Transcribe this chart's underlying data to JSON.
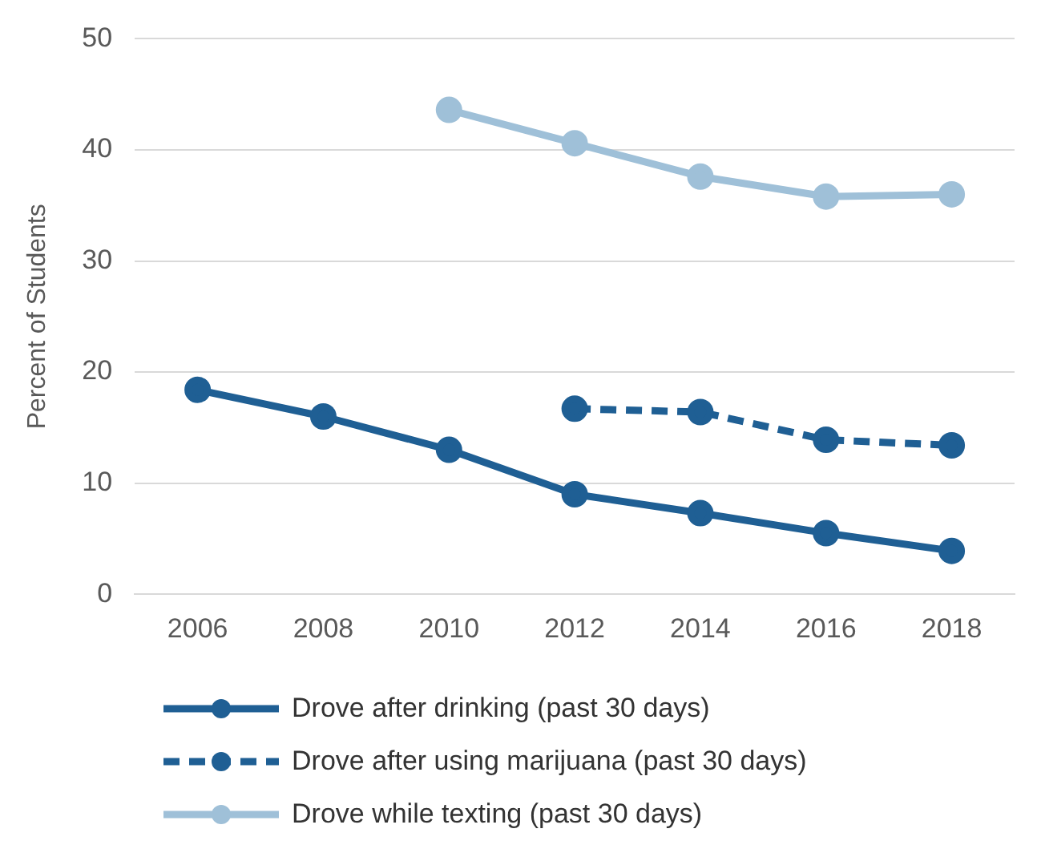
{
  "chart_data": {
    "type": "line",
    "ylabel": "Percent of Students",
    "categories": [
      "2006",
      "2008",
      "2010",
      "2012",
      "2014",
      "2016",
      "2018"
    ],
    "series": [
      {
        "name": "Drove after drinking (past 30 days)",
        "color": "#1f5f94",
        "values": [
          18.4,
          16.0,
          13.0,
          9.0,
          7.3,
          5.5,
          3.9
        ]
      },
      {
        "name": "Drove after using marijuana (past 30 days)",
        "color": "#1f5f94",
        "line_style": "dashed",
        "values": [
          null,
          null,
          null,
          16.7,
          16.4,
          13.9,
          13.4
        ]
      },
      {
        "name": "Drove while texting (past 30 days)",
        "color": "#9fc0d8",
        "values": [
          null,
          null,
          43.6,
          40.6,
          37.6,
          35.8,
          36.0
        ]
      }
    ],
    "ylim": [
      0,
      50
    ],
    "yticks": [
      0,
      10,
      20,
      30,
      40,
      50
    ],
    "grid": "y",
    "legend": "bottom",
    "marker": "circle",
    "line_style": "solid"
  }
}
